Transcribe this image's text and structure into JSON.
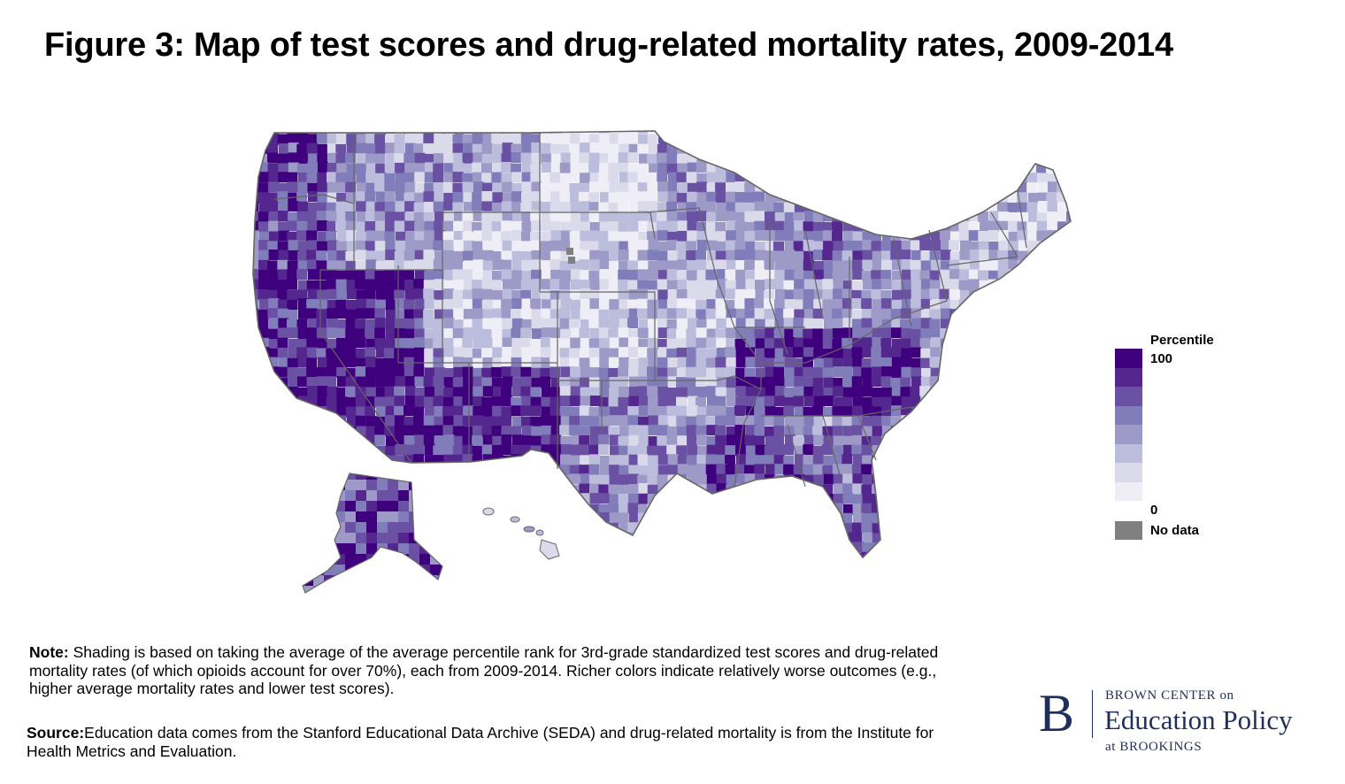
{
  "title": "Figure 3: Map of test scores and drug-related mortality rates, 2009-2014",
  "map": {
    "subject": "United States counties",
    "regions": [
      "Contiguous United States",
      "Alaska",
      "Hawaii"
    ]
  },
  "legend": {
    "title": "Percentile",
    "max_label": "100",
    "min_label": "0",
    "no_data_label": "No data",
    "no_data_color": "#808080",
    "colors": [
      "#3f007d",
      "#54278f",
      "#6a51a3",
      "#807dba",
      "#9e9ac8",
      "#bcbddc",
      "#dadaeb",
      "#efedf5"
    ]
  },
  "note": {
    "label": "Note:",
    "text": " Shading is based on taking the average of the average percentile rank for 3rd-grade standardized test scores and drug-related mortality rates (of which opioids account for over 70%), each from 2009-2014. Richer colors indicate relatively worse outcomes (e.g., higher average mortality rates and lower test scores)."
  },
  "source": {
    "label": "Source:",
    "text": "Education data comes from the Stanford Educational Data Archive (SEDA) and drug-related mortality is from the Institute for Health Metrics and Evaluation."
  },
  "logo": {
    "letter": "B",
    "line1": "BROWN CENTER on",
    "line2": "Education Policy",
    "line3": "at BROOKINGS"
  }
}
